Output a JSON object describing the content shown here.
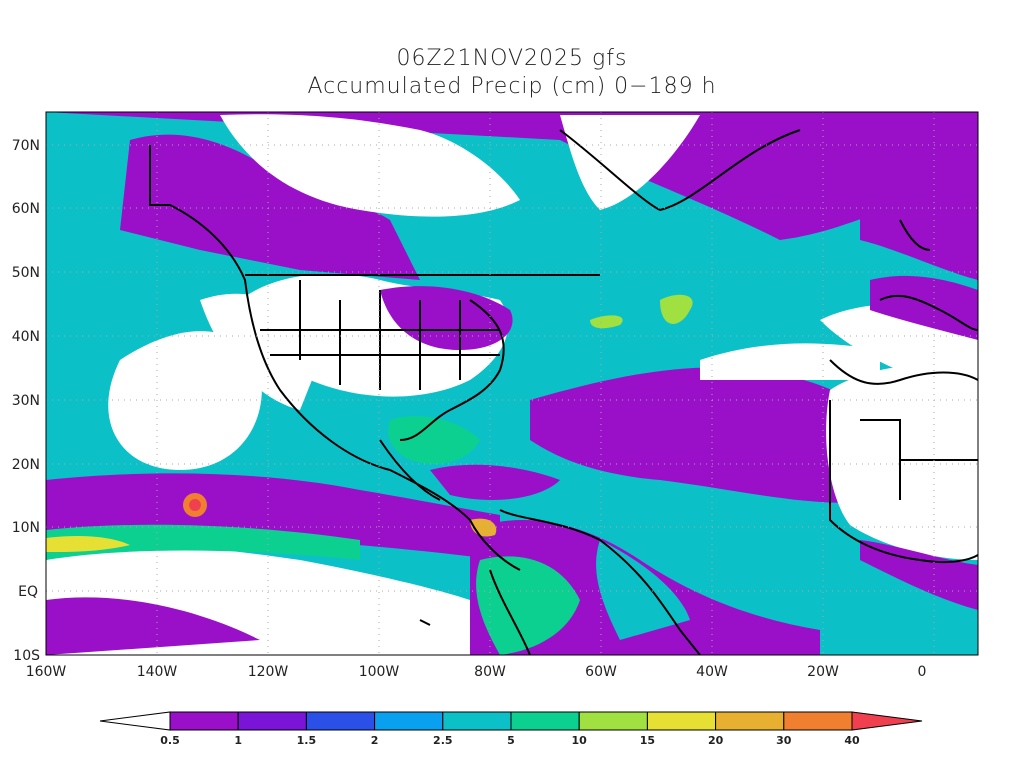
{
  "header": {
    "line1": "06Z21NOV2025 gfs",
    "line2": "Accumulated Precip (cm) 0−189 h"
  },
  "map": {
    "lat_labels": [
      "70N",
      "60N",
      "50N",
      "40N",
      "30N",
      "20N",
      "10N",
      "EQ",
      "10S"
    ],
    "lon_labels": [
      "160W",
      "140W",
      "120W",
      "100W",
      "80W",
      "60W",
      "40W",
      "20W",
      "0"
    ]
  },
  "colorbar": {
    "colors": [
      "#ffffff",
      "#9a10c8",
      "#7a14d6",
      "#2a50e8",
      "#0aa0f0",
      "#0cc0c8",
      "#0cd090",
      "#a0e040",
      "#e6e034",
      "#e8b030",
      "#f08030",
      "#f04050"
    ],
    "labels": [
      "0.5",
      "1",
      "1.5",
      "2",
      "2.5",
      "5",
      "10",
      "15",
      "20",
      "30",
      "40"
    ]
  }
}
